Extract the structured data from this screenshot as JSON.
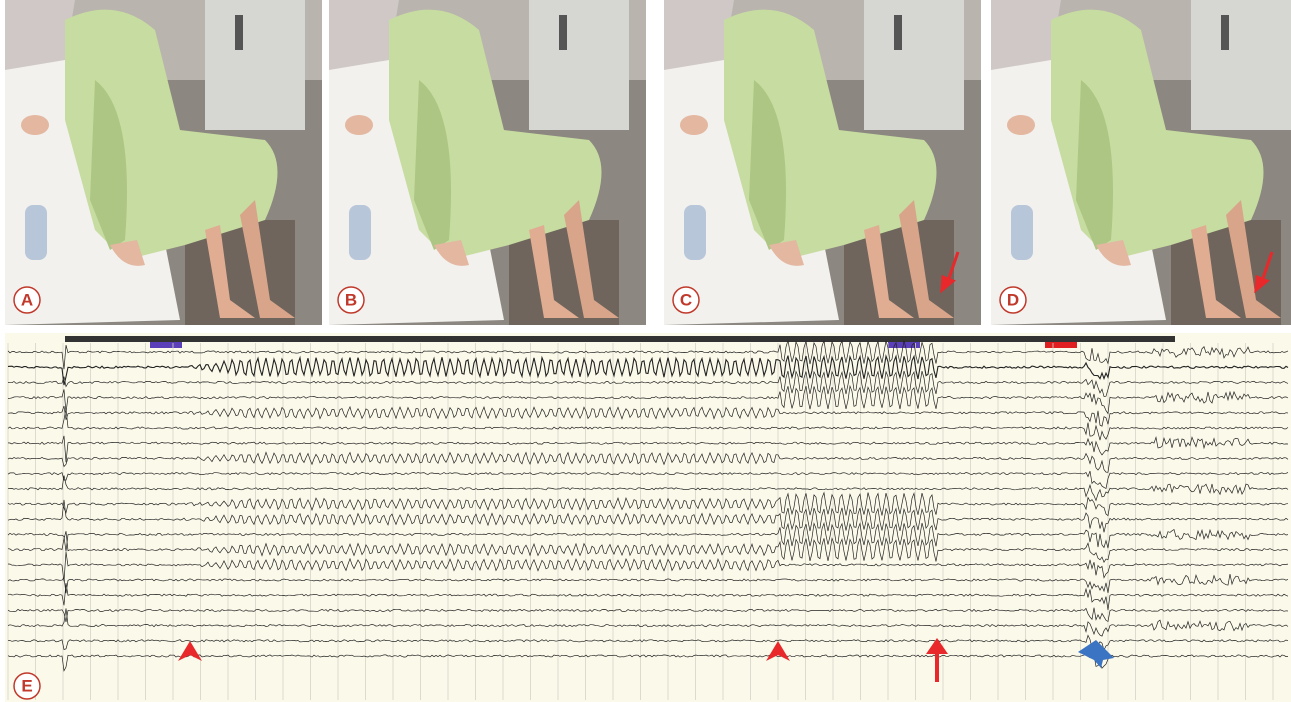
{
  "panels": {
    "a": {
      "label": "A"
    },
    "b": {
      "label": "B"
    },
    "c": {
      "label": "C"
    },
    "d": {
      "label": "D"
    },
    "e": {
      "label": "E"
    }
  }
}
